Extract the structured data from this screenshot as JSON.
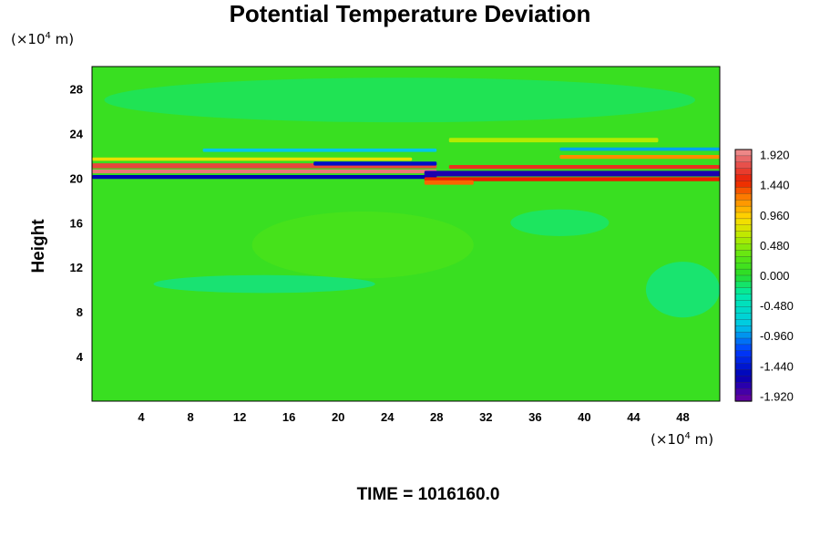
{
  "chart_data": {
    "type": "heatmap",
    "title": "Potential Temperature Deviation",
    "ylabel": "Height",
    "xlabel": "",
    "x_unit_prefix": "(×10",
    "x_unit_exp": "4",
    "x_unit_suffix": " m)",
    "y_unit_prefix": "(×10",
    "y_unit_exp": "4",
    "y_unit_suffix": " m)",
    "x_ticks": [
      "4",
      "8",
      "12",
      "16",
      "20",
      "24",
      "28",
      "32",
      "36",
      "40",
      "44",
      "48"
    ],
    "x_tick_values": [
      4,
      8,
      12,
      16,
      20,
      24,
      28,
      32,
      36,
      40,
      44,
      48
    ],
    "y_ticks": [
      "4",
      "8",
      "12",
      "16",
      "20",
      "24",
      "28"
    ],
    "y_tick_values": [
      4,
      8,
      12,
      16,
      20,
      24,
      28
    ],
    "xlim": [
      0,
      51
    ],
    "ylim": [
      0,
      30
    ],
    "colorbar_ticks": [
      "1.920",
      "1.440",
      "0.960",
      "0.480",
      "0.000",
      "-0.480",
      "-0.960",
      "-1.440",
      "-1.920"
    ],
    "colorbar_tick_values": [
      1.92,
      1.44,
      0.96,
      0.48,
      0.0,
      -0.48,
      -0.96,
      -1.44,
      -1.92
    ],
    "colorbar_range": [
      -2.0,
      2.0
    ],
    "background_value": 0.1,
    "features": [
      {
        "kind": "band",
        "x0": 0,
        "x1": 28,
        "y": 21.1,
        "height": 0.45,
        "value": 1.7
      },
      {
        "kind": "band",
        "x0": 0,
        "x1": 28,
        "y": 20.6,
        "height": 0.35,
        "value": 1.9
      },
      {
        "kind": "band",
        "x0": 0,
        "x1": 28,
        "y": 20.1,
        "height": 0.35,
        "value": -1.6
      },
      {
        "kind": "band",
        "x0": 0,
        "x1": 26,
        "y": 21.7,
        "height": 0.3,
        "value": 0.8
      },
      {
        "kind": "band",
        "x0": 18,
        "x1": 28,
        "y": 21.3,
        "height": 0.35,
        "value": -1.5
      },
      {
        "kind": "band",
        "x0": 27,
        "x1": 51,
        "y": 20.4,
        "height": 0.5,
        "value": -1.7
      },
      {
        "kind": "band",
        "x0": 27,
        "x1": 51,
        "y": 19.9,
        "height": 0.35,
        "value": 1.5
      },
      {
        "kind": "band",
        "x0": 29,
        "x1": 51,
        "y": 21.0,
        "height": 0.35,
        "value": 1.6
      },
      {
        "kind": "band",
        "x0": 38,
        "x1": 51,
        "y": 21.9,
        "height": 0.35,
        "value": 1.2
      },
      {
        "kind": "band",
        "x0": 38,
        "x1": 51,
        "y": 22.6,
        "height": 0.3,
        "value": -0.9
      },
      {
        "kind": "band",
        "x0": 9,
        "x1": 28,
        "y": 22.5,
        "height": 0.3,
        "value": -0.8
      },
      {
        "kind": "band",
        "x0": 29,
        "x1": 46,
        "y": 23.4,
        "height": 0.4,
        "value": 0.6
      },
      {
        "kind": "band",
        "x0": 27,
        "x1": 31,
        "y": 19.6,
        "height": 0.4,
        "value": 1.3
      },
      {
        "kind": "blob",
        "x": 14,
        "y": 10.5,
        "rx": 9,
        "ry": 0.8,
        "value": -0.4
      },
      {
        "kind": "blob",
        "x": 48,
        "y": 10.0,
        "rx": 3,
        "ry": 2.5,
        "value": -0.35
      },
      {
        "kind": "blob",
        "x": 38,
        "y": 16.0,
        "rx": 4,
        "ry": 1.2,
        "value": -0.25
      },
      {
        "kind": "blob",
        "x": 22,
        "y": 14.0,
        "rx": 9,
        "ry": 3,
        "value": 0.25
      },
      {
        "kind": "blob",
        "x": 25,
        "y": 27.0,
        "rx": 24,
        "ry": 2,
        "value": -0.2
      }
    ]
  },
  "time_label": "TIME = 1016160.0"
}
